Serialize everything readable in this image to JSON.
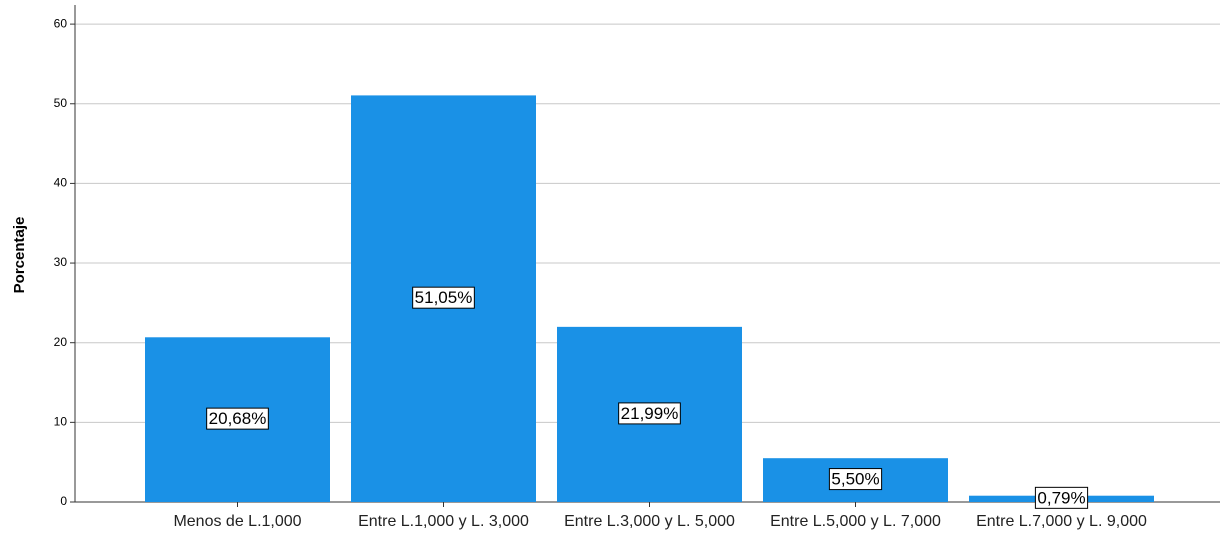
{
  "chart_data": {
    "type": "bar",
    "y_label": "Porcentaje",
    "categories": [
      "Menos de L.1,000",
      "Entre L.1,000 y L. 3,000",
      "Entre L.3,000 y L. 5,000",
      "Entre L.5,000 y L. 7,000",
      "Entre L.7,000 y L. 9,000"
    ],
    "values": [
      20.68,
      51.05,
      21.99,
      5.5,
      0.79
    ],
    "value_labels": [
      "20,68%",
      "51,05%",
      "21,99%",
      "5,50%",
      "0,79%"
    ],
    "color": "#1a91e6",
    "ylim": [
      0,
      62.4
    ],
    "yticks": [
      0,
      10,
      20,
      30,
      40,
      50,
      60
    ],
    "grid": true
  }
}
